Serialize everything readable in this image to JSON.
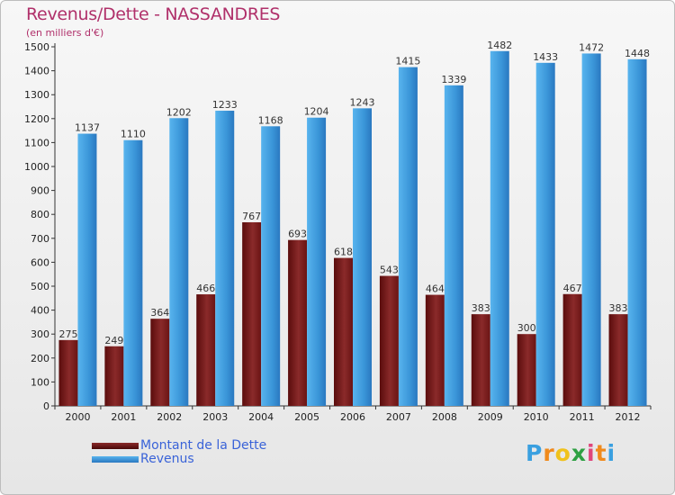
{
  "header": {
    "title": "Revenus/Dette - NASSANDRES",
    "subtitle": "(en milliers d'€)"
  },
  "colors": {
    "dette": "#7a1a1a",
    "revenus": "#3a95d8",
    "title": "#b0306a",
    "legend_text": "#3a63d8"
  },
  "chart_data": {
    "type": "bar",
    "categories": [
      "2000",
      "2001",
      "2002",
      "2003",
      "2004",
      "2005",
      "2006",
      "2007",
      "2008",
      "2009",
      "2010",
      "2011",
      "2012"
    ],
    "series": [
      {
        "name": "Montant de la Dette",
        "values": [
          275,
          249,
          364,
          466,
          767,
          693,
          618,
          543,
          464,
          383,
          300,
          467,
          383
        ]
      },
      {
        "name": "Revenus",
        "values": [
          1137,
          1110,
          1202,
          1233,
          1168,
          1204,
          1243,
          1415,
          1339,
          1482,
          1433,
          1472,
          1448
        ]
      }
    ],
    "ylim": [
      0,
      1500
    ],
    "yticks": [
      0,
      100,
      200,
      300,
      400,
      500,
      600,
      700,
      800,
      900,
      1000,
      1100,
      1200,
      1300,
      1400,
      1500
    ],
    "grid": false,
    "legend_position": "bottom-left"
  },
  "legend": [
    {
      "label": "Montant de la Dette",
      "icon": "dark-red-swatch"
    },
    {
      "label": "Revenus",
      "icon": "blue-swatch"
    }
  ],
  "logo": {
    "letters": [
      "P",
      "r",
      "o",
      "x",
      "i",
      "t",
      "i"
    ],
    "colors": [
      "#3aa0e0",
      "#f08a1c",
      "#f0c21c",
      "#2ea043",
      "#e0457b",
      "#f08a1c",
      "#3aa0e0"
    ]
  }
}
